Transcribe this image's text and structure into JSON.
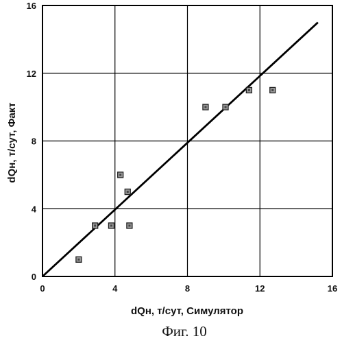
{
  "chart_data": {
    "type": "scatter",
    "xlabel": "dQн, т/сут, Симулятор",
    "ylabel": "dQн, т/сут, Факт",
    "xlim": [
      0,
      16
    ],
    "ylim": [
      0,
      16
    ],
    "x_ticks": [
      "0",
      "4",
      "8",
      "12",
      "16"
    ],
    "y_ticks": [
      "0",
      "4",
      "8",
      "12",
      "16"
    ],
    "grid": true,
    "legend": "none",
    "series": [
      {
        "marker": "square",
        "x": [
          2.0,
          2.9,
          3.8,
          4.8,
          4.3,
          4.7,
          9.0,
          10.1,
          11.4,
          12.7
        ],
        "y": [
          1,
          3,
          3,
          3,
          6,
          5,
          10,
          10,
          11,
          11
        ]
      }
    ],
    "reference_line": {
      "x": [
        0,
        15.2
      ],
      "y": [
        0,
        15
      ]
    }
  },
  "figure": {
    "caption": "Фиг. 10"
  }
}
